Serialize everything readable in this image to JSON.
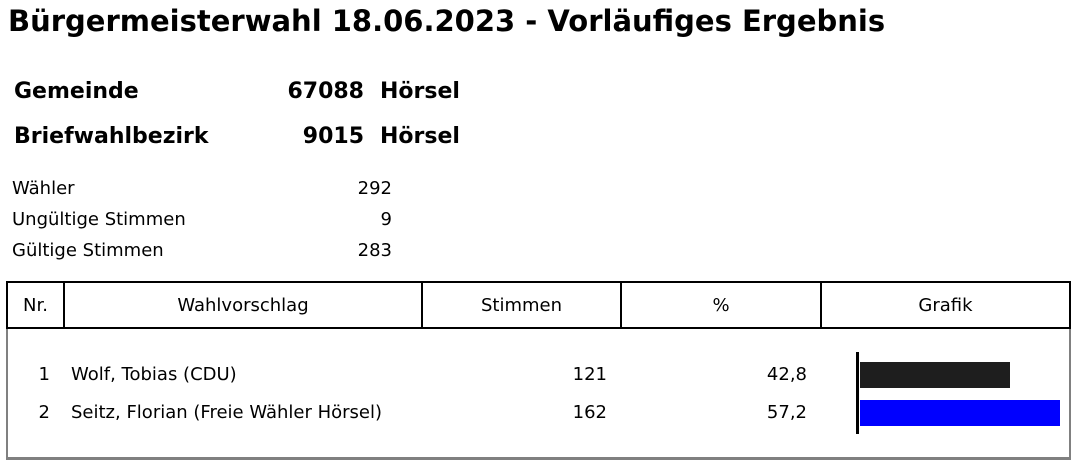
{
  "title": "Bürgermeisterwahl 18.06.2023 - Vorläufiges Ergebnis",
  "gemeinde": {
    "label": "Gemeinde",
    "number": "67088",
    "name": "Hörsel"
  },
  "bezirk": {
    "label": "Briefwahlbezirk",
    "number": "9015",
    "name": "Hörsel"
  },
  "stats": [
    {
      "label": "Wähler",
      "value": "292"
    },
    {
      "label": "Ungültige Stimmen",
      "value": "9"
    },
    {
      "label": "Gültige Stimmen",
      "value": "283"
    }
  ],
  "table": {
    "headers": [
      "Nr.",
      "Wahlvorschlag",
      "Stimmen",
      "%",
      "Grafik"
    ],
    "rows": [
      {
        "nr": "1",
        "name": "Wolf, Tobias (CDU)",
        "votes": "121",
        "percent": "42,8",
        "share": 42.8,
        "color": "#1e1e1e"
      },
      {
        "nr": "2",
        "name": "Seitz, Florian (Freie Wähler Hörsel)",
        "votes": "162",
        "percent": "57,2",
        "share": 57.2,
        "color": "#0000ff"
      }
    ]
  }
}
